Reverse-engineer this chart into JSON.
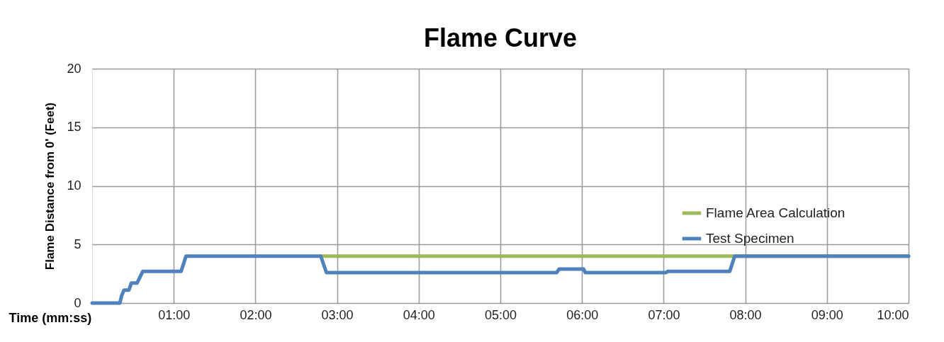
{
  "chart_data": {
    "type": "line",
    "title": "Flame Curve",
    "xlabel": "Time (mm:ss)",
    "ylabel": "Flame Distance from 0' (Feet)",
    "xlim": [
      0,
      10
    ],
    "xticks": [
      {
        "value": 1,
        "label": "01:00"
      },
      {
        "value": 2,
        "label": "02:00"
      },
      {
        "value": 3,
        "label": "03:00"
      },
      {
        "value": 4,
        "label": "04:00"
      },
      {
        "value": 5,
        "label": "05:00"
      },
      {
        "value": 6,
        "label": "06:00"
      },
      {
        "value": 7,
        "label": "07:00"
      },
      {
        "value": 8,
        "label": "08:00"
      },
      {
        "value": 9,
        "label": "09:00"
      },
      {
        "value": 10,
        "label": "10:00"
      }
    ],
    "ylim": [
      0,
      20
    ],
    "yticks": [
      0,
      5,
      10,
      15,
      20
    ],
    "grid": true,
    "legend": "right",
    "line_style": "solid",
    "marker": "none",
    "series": [
      {
        "name": "Flame Area Calculation",
        "color": "#9bbb59",
        "x": [
          2.8,
          10
        ],
        "values": [
          4.0,
          4.0
        ]
      },
      {
        "name": "Test Specimen",
        "color": "#4f81bd",
        "x": [
          0,
          0.34,
          0.36,
          0.39,
          0.45,
          0.48,
          0.55,
          0.62,
          1.09,
          1.15,
          2.8,
          2.87,
          5.69,
          5.72,
          6.02,
          6.04,
          7.03,
          7.05,
          7.81,
          7.87,
          10
        ],
        "values": [
          0,
          0,
          0.6,
          1.1,
          1.1,
          1.7,
          1.7,
          2.7,
          2.7,
          4.0,
          4.0,
          2.6,
          2.6,
          2.9,
          2.9,
          2.6,
          2.6,
          2.7,
          2.7,
          4.0,
          4.0
        ]
      }
    ]
  }
}
